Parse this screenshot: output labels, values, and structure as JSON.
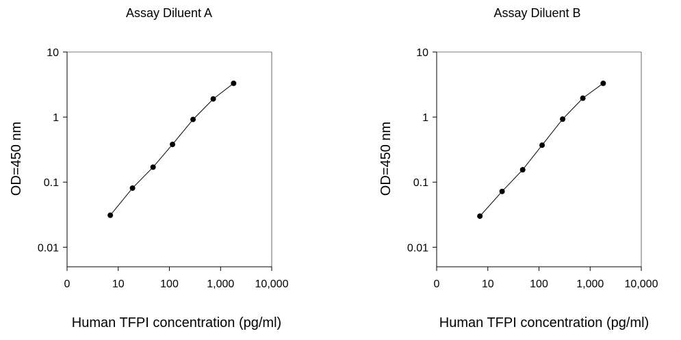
{
  "chart_data": [
    {
      "type": "line",
      "title": "Assay Diluent A",
      "xlabel": "Human TFPI concentration (pg/ml)",
      "ylabel": "OD=450 nm",
      "xscale": "log",
      "yscale": "log",
      "xlim": [
        1,
        10000
      ],
      "ylim": [
        0.005,
        10
      ],
      "xticks": [
        {
          "label": "0",
          "value": 1
        },
        {
          "label": "10",
          "value": 10
        },
        {
          "label": "100",
          "value": 100
        },
        {
          "label": "1,000",
          "value": 1000
        },
        {
          "label": "10,000",
          "value": 10000
        }
      ],
      "yticks": [
        {
          "label": "10",
          "value": 10
        },
        {
          "label": "1",
          "value": 1
        },
        {
          "label": "0.1",
          "value": 0.1
        },
        {
          "label": "0.01",
          "value": 0.01
        }
      ],
      "series": [
        {
          "x": [
            7,
            19,
            48,
            115,
            290,
            720,
            1800
          ],
          "y": [
            0.031,
            0.081,
            0.17,
            0.38,
            0.92,
            1.9,
            3.3
          ]
        }
      ]
    },
    {
      "type": "line",
      "title": "Assay Diluent B",
      "xlabel": "Human TFPI concentration (pg/ml)",
      "ylabel": "OD=450 nm",
      "xscale": "log",
      "yscale": "log",
      "xlim": [
        1,
        10000
      ],
      "ylim": [
        0.005,
        10
      ],
      "xticks": [
        {
          "label": "0",
          "value": 1
        },
        {
          "label": "10",
          "value": 10
        },
        {
          "label": "100",
          "value": 100
        },
        {
          "label": "1,000",
          "value": 1000
        },
        {
          "label": "10,000",
          "value": 10000
        }
      ],
      "yticks": [
        {
          "label": "10",
          "value": 10
        },
        {
          "label": "1",
          "value": 1
        },
        {
          "label": "0.1",
          "value": 0.1
        },
        {
          "label": "0.01",
          "value": 0.01
        }
      ],
      "series": [
        {
          "x": [
            7,
            19,
            48,
            115,
            290,
            720,
            1800
          ],
          "y": [
            0.03,
            0.072,
            0.155,
            0.37,
            0.93,
            1.95,
            3.3
          ]
        }
      ]
    }
  ]
}
